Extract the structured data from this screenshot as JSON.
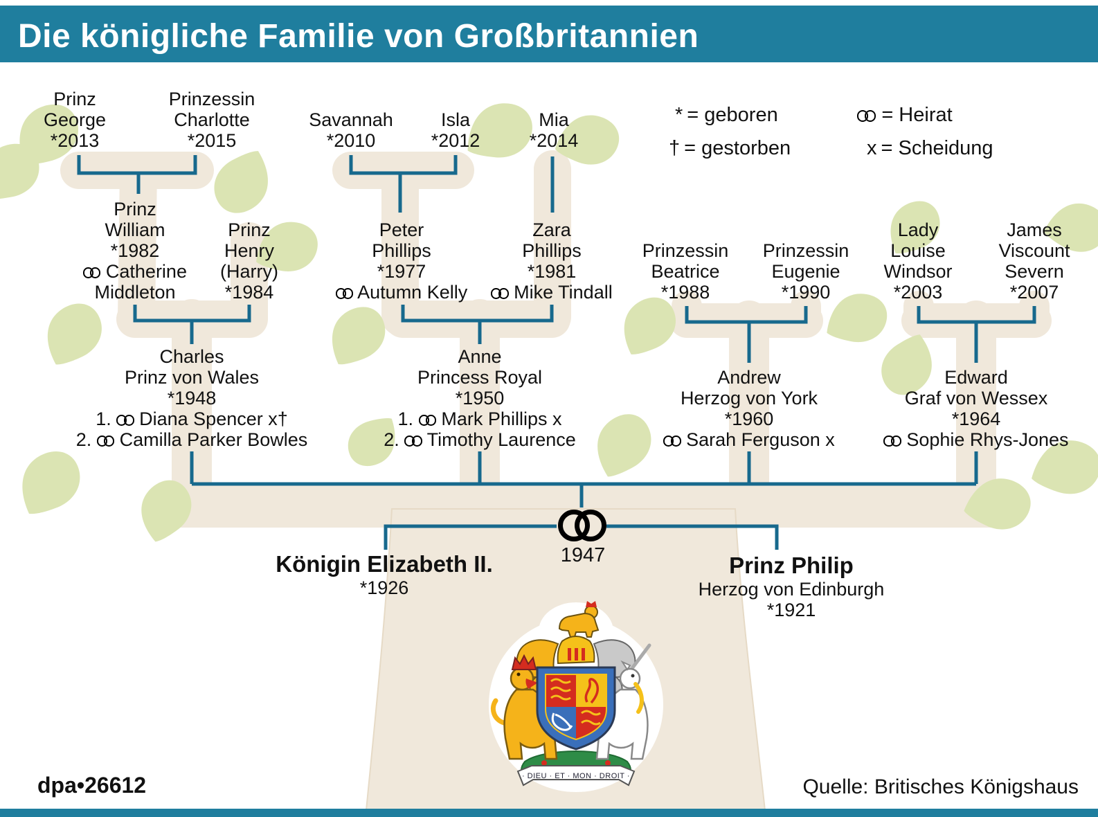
{
  "header": {
    "title": "Die königliche Familie von Großbritannien"
  },
  "legend": {
    "born": {
      "symbol": "*",
      "label": "= geboren"
    },
    "died": {
      "symbol": "†",
      "label": "= gestorben"
    },
    "marriage": {
      "label": "= Heirat"
    },
    "divorce": {
      "symbol": "x",
      "label": "= Scheidung"
    }
  },
  "persons": {
    "george": {
      "lines": [
        "Prinz",
        "George",
        "*2013"
      ]
    },
    "charlotte": {
      "lines": [
        "Prinzessin",
        "Charlotte",
        "*2015"
      ]
    },
    "savannah": {
      "lines": [
        "Savannah",
        "*2010"
      ]
    },
    "isla": {
      "lines": [
        "Isla",
        "*2012"
      ]
    },
    "mia": {
      "lines": [
        "Mia",
        "*2014"
      ]
    },
    "william": {
      "lines": [
        "Prinz",
        "William",
        "*1982",
        "⚭ Catherine",
        "Middleton"
      ]
    },
    "henry": {
      "lines": [
        "Prinz",
        "Henry",
        "(Harry)",
        "*1984"
      ]
    },
    "peter": {
      "lines": [
        "Peter",
        "Phillips",
        "*1977",
        "⚭ Autumn Kelly"
      ]
    },
    "zara": {
      "lines": [
        "Zara",
        "Phillips",
        "*1981",
        "⚭ Mike Tindall"
      ]
    },
    "beatrice": {
      "lines": [
        "Prinzessin",
        "Beatrice",
        "*1988"
      ]
    },
    "eugenie": {
      "lines": [
        "Prinzessin",
        "Eugenie",
        "*1990"
      ]
    },
    "louise": {
      "lines": [
        "Lady",
        "Louise",
        "Windsor",
        "*2003"
      ]
    },
    "james": {
      "lines": [
        "James",
        "Viscount",
        "Severn",
        "*2007"
      ]
    },
    "charles": {
      "lines": [
        "Charles",
        "Prinz von Wales",
        "*1948",
        "1. ⚭ Diana Spencer x†",
        "2. ⚭ Camilla Parker Bowles"
      ]
    },
    "anne": {
      "lines": [
        "Anne",
        "Princess Royal",
        "*1950",
        "1. ⚭ Mark Phillips x",
        "2. ⚭ Timothy Laurence"
      ]
    },
    "andrew": {
      "lines": [
        "Andrew",
        "Herzog von York",
        "*1960",
        "⚭ Sarah Ferguson x"
      ]
    },
    "edward": {
      "lines": [
        "Edward",
        "Graf von Wessex",
        "*1964",
        "⚭ Sophie Rhys-Jones"
      ]
    },
    "elizabeth": {
      "name": "Königin Elizabeth II.",
      "lines": [
        "*1926"
      ]
    },
    "philip": {
      "name": "Prinz Philip",
      "lines": [
        "Herzog von Edinburgh",
        "*1921"
      ]
    }
  },
  "marriage": {
    "year": "1947"
  },
  "coat_of_arms": {
    "motto": "· DIEU · ET · MON · DROIT ·"
  },
  "footer": {
    "credit": "dpa•26612",
    "source": "Quelle: Britisches Königshaus"
  },
  "colors": {
    "header_teal": "#1f7e9e",
    "line_teal": "#17698d",
    "branch_beige": "#f0e8db",
    "leaf_green": "#dbe4b3"
  }
}
